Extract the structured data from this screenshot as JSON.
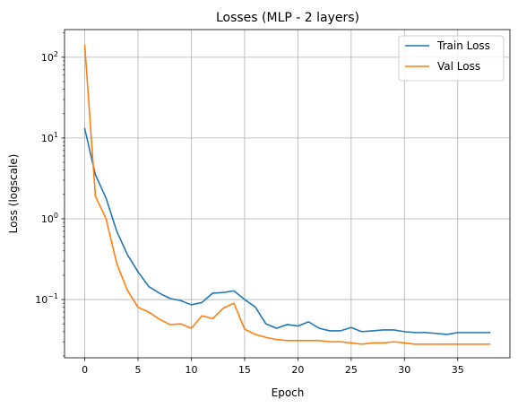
{
  "chart_data": {
    "type": "line",
    "title": "Losses (MLP - 2 layers)",
    "xlabel": "Epoch",
    "ylabel": "Loss (logscale)",
    "yscale": "log",
    "xlim": [
      -1.9,
      39.9
    ],
    "ylim": [
      0.019,
      220
    ],
    "xticks": [
      0,
      5,
      10,
      15,
      20,
      25,
      30,
      35
    ],
    "xtick_labels": [
      "0",
      "5",
      "10",
      "15",
      "20",
      "25",
      "30",
      "35"
    ],
    "yticks": [
      0.1,
      1,
      10,
      100
    ],
    "ytick_labels": [
      {
        "base": "10",
        "exp": "−1"
      },
      {
        "base": "10",
        "exp": "0"
      },
      {
        "base": "10",
        "exp": "1"
      },
      {
        "base": "10",
        "exp": "2"
      }
    ],
    "grid": true,
    "legend_position": "top-right",
    "x": [
      0,
      1,
      2,
      3,
      4,
      5,
      6,
      7,
      8,
      9,
      10,
      11,
      12,
      13,
      14,
      15,
      16,
      17,
      18,
      19,
      20,
      21,
      22,
      23,
      24,
      25,
      26,
      27,
      28,
      29,
      30,
      31,
      32,
      33,
      34,
      35,
      36,
      37,
      38
    ],
    "series": [
      {
        "name": "Train Loss",
        "color": "#1f77b4",
        "values": [
          13.0,
          3.5,
          1.8,
          0.7,
          0.36,
          0.22,
          0.145,
          0.12,
          0.103,
          0.097,
          0.086,
          0.092,
          0.12,
          0.122,
          0.128,
          0.1,
          0.081,
          0.05,
          0.044,
          0.049,
          0.047,
          0.053,
          0.044,
          0.041,
          0.041,
          0.045,
          0.04,
          0.041,
          0.042,
          0.042,
          0.04,
          0.039,
          0.039,
          0.038,
          0.037,
          0.039,
          0.039,
          0.039,
          0.039
        ]
      },
      {
        "name": "Val Loss",
        "color": "#ff7f0e",
        "values": [
          140.0,
          1.9,
          1.0,
          0.28,
          0.13,
          0.08,
          0.07,
          0.057,
          0.049,
          0.05,
          0.044,
          0.063,
          0.058,
          0.078,
          0.09,
          0.043,
          0.037,
          0.034,
          0.032,
          0.031,
          0.031,
          0.031,
          0.031,
          0.03,
          0.03,
          0.029,
          0.028,
          0.029,
          0.029,
          0.03,
          0.029,
          0.028,
          0.028,
          0.028,
          0.028,
          0.028,
          0.028,
          0.028,
          0.028
        ]
      }
    ]
  }
}
